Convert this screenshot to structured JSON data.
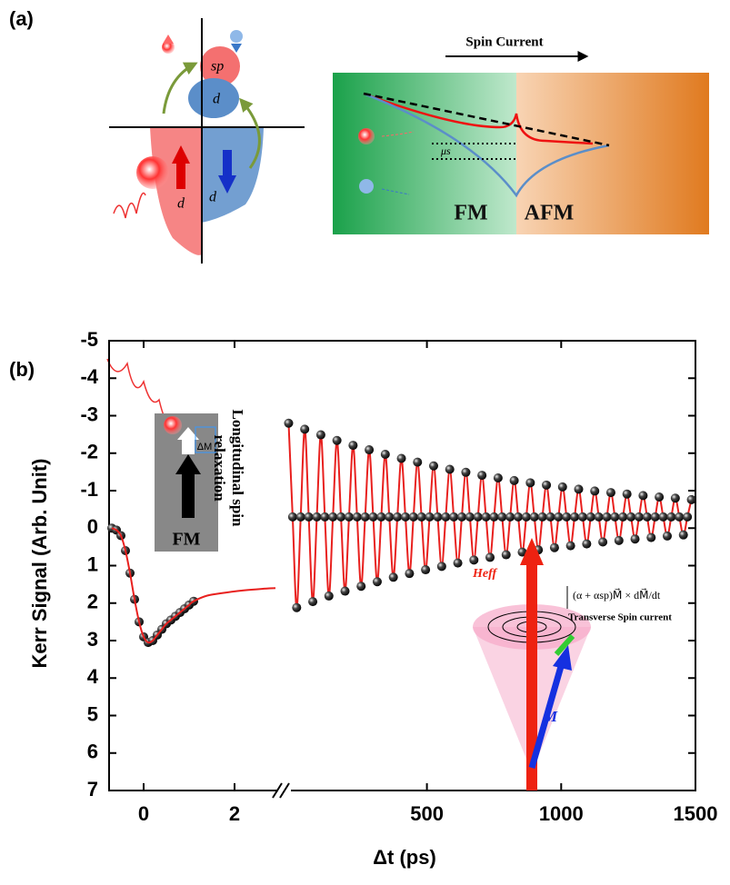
{
  "figure": {
    "panel_a": "(a)",
    "panel_b": "(b)",
    "sp": "sp",
    "d_up": "d",
    "d_left": "d",
    "d_right": "d",
    "spin_current": "Spin Current",
    "mu": "μs",
    "fm": "FM",
    "afm": "AFM",
    "delta_m": "ΔM",
    "inset_fm": "FM",
    "longitudinal_1": "Longitudinal spin",
    "longitudinal_2": "relaxation",
    "h_eff": "Heff",
    "m": "M",
    "equation": "(α + αsp)M⃗ × dM⃗/dt",
    "transverse": "Transverse Spin current"
  },
  "chart_data": [
    {
      "type": "scatter",
      "ylabel": "Kerr Signal (Arb. Unit)",
      "xlabel": "Δt (ps)",
      "ylim": [
        7,
        -5
      ],
      "yticks": [
        -5,
        -4,
        -3,
        -2,
        -1,
        0,
        1,
        2,
        3,
        4,
        5,
        6,
        7
      ],
      "xlim": [
        -0.76,
        3.04
      ],
      "xticks": [
        0,
        2
      ],
      "series": [
        {
          "color": "#111111",
          "style": "markers",
          "x": [
            -0.7,
            -0.6,
            -0.5,
            -0.4,
            -0.3,
            -0.2,
            -0.1,
            0,
            0.1,
            0.2,
            0.3,
            0.4,
            0.5,
            0.6,
            0.7,
            0.8,
            0.9,
            1.0,
            1.1
          ],
          "values": [
            0,
            0.05,
            0.2,
            0.6,
            1.2,
            1.9,
            2.5,
            2.9,
            3.05,
            3.0,
            2.85,
            2.7,
            2.55,
            2.45,
            2.35,
            2.25,
            2.15,
            2.05,
            1.95
          ]
        },
        {
          "color": "#e8201e",
          "style": "line",
          "x": [
            -0.7,
            -0.6,
            -0.5,
            -0.4,
            -0.3,
            -0.2,
            -0.1,
            0,
            0.1,
            0.2,
            0.3,
            0.4,
            0.5,
            0.6,
            0.7,
            0.8,
            0.9,
            1.0,
            1.1,
            1.4,
            1.8,
            2.2,
            2.6,
            2.9
          ],
          "values": [
            0,
            0.05,
            0.2,
            0.6,
            1.2,
            1.9,
            2.5,
            2.9,
            3.05,
            3.0,
            2.85,
            2.7,
            2.55,
            2.45,
            2.35,
            2.25,
            2.15,
            2.05,
            1.95,
            1.8,
            1.72,
            1.66,
            1.62,
            1.6
          ]
        }
      ]
    },
    {
      "type": "scatter",
      "ylim": [
        7,
        -5
      ],
      "xlim": [
        -20,
        1500
      ],
      "xticks": [
        500,
        1000,
        1500
      ],
      "series": [
        {
          "color": "#111111",
          "line_color": "#e8201e",
          "style": "line+markers",
          "x": [
            -15,
            0,
            15,
            30,
            45,
            60,
            75,
            90,
            105,
            120,
            135,
            150,
            165,
            180,
            195,
            210,
            225,
            240,
            255,
            270,
            285,
            300,
            315,
            330,
            345,
            360,
            375,
            390,
            405,
            420,
            435,
            450,
            465,
            480,
            495,
            510,
            525,
            540,
            555,
            570,
            585,
            600,
            615,
            630,
            645,
            660,
            675,
            690,
            705,
            720,
            735,
            750,
            765,
            780,
            795,
            810,
            825,
            840,
            855,
            870,
            885,
            900,
            915,
            930,
            945,
            960,
            975,
            990,
            1005,
            1020,
            1035,
            1050,
            1065,
            1080,
            1095,
            1110,
            1125,
            1140,
            1155,
            1170,
            1185,
            1200,
            1215,
            1230,
            1245,
            1260,
            1275,
            1290,
            1305,
            1320,
            1335,
            1350,
            1365,
            1380,
            1395,
            1410,
            1425,
            1440,
            1455,
            1470,
            1485
          ],
          "values": [
            -2.8,
            -0.3,
            2.12,
            -0.3,
            -2.64,
            -0.3,
            1.96,
            -0.3,
            -2.49,
            -0.3,
            1.81,
            -0.3,
            -2.34,
            -0.3,
            1.68,
            -0.3,
            -2.21,
            -0.3,
            1.55,
            -0.3,
            -2.09,
            -0.3,
            1.43,
            -0.3,
            -1.97,
            -0.3,
            1.31,
            -0.3,
            -1.86,
            -0.3,
            1.21,
            -0.3,
            -1.76,
            -0.3,
            1.11,
            -0.3,
            -1.66,
            -0.3,
            1.02,
            -0.3,
            -1.57,
            -0.3,
            0.93,
            -0.3,
            -1.49,
            -0.3,
            0.85,
            -0.3,
            -1.41,
            -0.3,
            0.78,
            -0.3,
            -1.34,
            -0.3,
            0.71,
            -0.3,
            -1.27,
            -0.3,
            0.64,
            -0.3,
            -1.21,
            -0.3,
            0.58,
            -0.3,
            -1.15,
            -0.3,
            0.52,
            -0.3,
            -1.1,
            -0.3,
            0.47,
            -0.3,
            -1.04,
            -0.3,
            0.42,
            -0.3,
            -0.99,
            -0.3,
            0.37,
            -0.3,
            -0.95,
            -0.3,
            0.33,
            -0.3,
            -0.91,
            -0.3,
            0.29,
            -0.3,
            -0.87,
            -0.3,
            0.25,
            -0.3,
            -0.83,
            -0.3,
            0.21,
            -0.3,
            -0.8,
            -0.3,
            0.18,
            -0.3,
            -0.76
          ]
        }
      ]
    }
  ]
}
